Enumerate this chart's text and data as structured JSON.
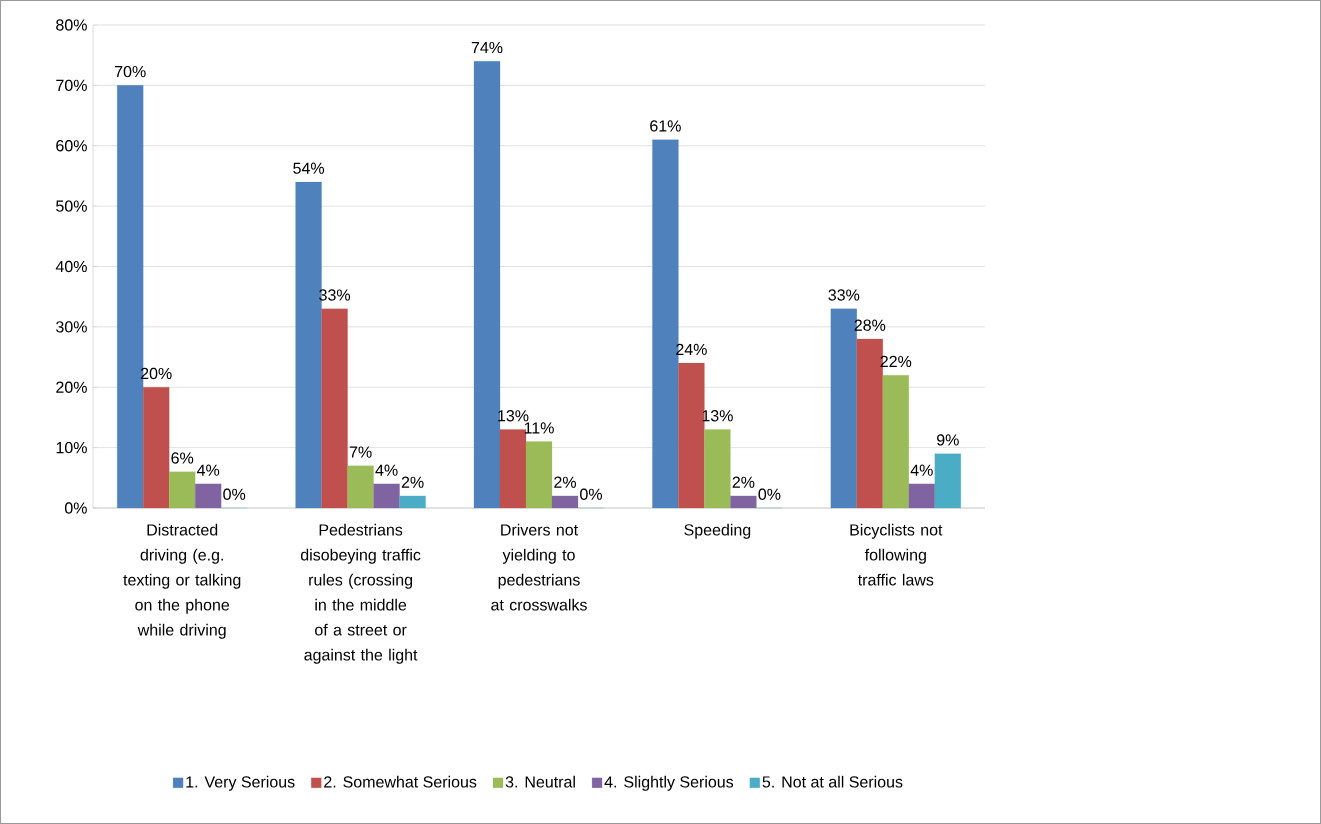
{
  "chart_data": {
    "type": "bar",
    "categories": [
      "Distracted driving (e.g. texting or talking on the phone while driving",
      "Pedestrians disobeying traffic rules (crossing in the middle of a street or against the light",
      "Drivers not yielding to pedestrians at crosswalks",
      "Speeding",
      "Bicyclists not following traffic laws"
    ],
    "series": [
      {
        "name": "1. Very Serious",
        "color": "#4f81bd",
        "values": [
          70,
          54,
          74,
          61,
          33
        ],
        "value_labels": [
          "70%",
          "54%",
          "74%",
          "61%",
          "33%"
        ]
      },
      {
        "name": "2. Somewhat Serious",
        "color": "#c0504d",
        "values": [
          20,
          33,
          13,
          24,
          28
        ],
        "value_labels": [
          "20%",
          "33%",
          "13%",
          "24%",
          "28%"
        ]
      },
      {
        "name": "3. Neutral",
        "color": "#9bbb59",
        "values": [
          6,
          7,
          11,
          13,
          22
        ],
        "value_labels": [
          "6%",
          "7%",
          "11%",
          "13%",
          "22%"
        ]
      },
      {
        "name": "4. Slightly Serious",
        "color": "#8064a2",
        "values": [
          4,
          4,
          2,
          2,
          4
        ],
        "value_labels": [
          "4%",
          "4%",
          "2%",
          "2%",
          "4%"
        ]
      },
      {
        "name": "5. Not at all Serious",
        "color": "#4bacc6",
        "values": [
          0,
          2,
          0,
          0,
          9
        ],
        "value_labels": [
          "0%",
          "2%",
          "0%",
          "0%",
          "9%"
        ]
      }
    ],
    "ylim": [
      0,
      80
    ],
    "yticks": [
      {
        "value": 0,
        "label": "0%"
      },
      {
        "value": 10,
        "label": "10%"
      },
      {
        "value": 20,
        "label": "20%"
      },
      {
        "value": 30,
        "label": "30%"
      },
      {
        "value": 40,
        "label": "40%"
      },
      {
        "value": 50,
        "label": "50%"
      },
      {
        "value": 60,
        "label": "60%"
      },
      {
        "value": 70,
        "label": "70%"
      },
      {
        "value": 80,
        "label": "80%"
      }
    ],
    "grid": "y",
    "legend": "bottom"
  }
}
